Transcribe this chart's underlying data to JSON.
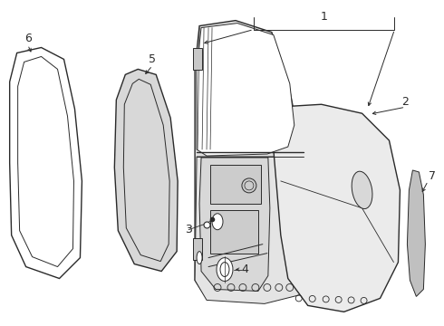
{
  "background_color": "#ffffff",
  "line_color": "#2a2a2a",
  "fill_light": "#e8e8e8",
  "fill_mid": "#d0d0d0",
  "fill_dark": "#b8b8b8",
  "figsize": [
    4.9,
    3.6
  ],
  "dpi": 100,
  "label_fontsize": 9
}
